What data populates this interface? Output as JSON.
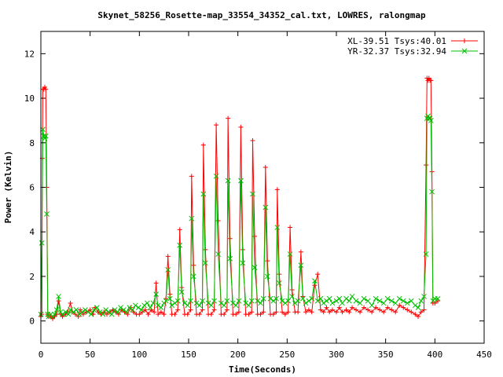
{
  "chart_data": {
    "type": "line",
    "title": "Skynet_58256_Rosette-map_33554_34352_cal.txt, LOWRES, ralongmap",
    "xlabel": "Time(Seconds)",
    "ylabel": "Power (Kelvin)",
    "xlim": [
      0,
      450
    ],
    "ylim": [
      -1,
      13
    ],
    "xticks": [
      0,
      50,
      100,
      150,
      200,
      250,
      300,
      350,
      400,
      450
    ],
    "yticks": [
      0,
      2,
      4,
      6,
      8,
      10,
      12
    ],
    "grid": false,
    "legend_position": "top-right",
    "series": [
      {
        "name": "XL-39.51 Tsys:40.01",
        "color": "#ff0000",
        "marker": "plus",
        "points": [
          [
            0,
            0.2
          ],
          [
            1,
            0.3
          ],
          [
            1.5,
            7.3
          ],
          [
            2,
            10.4
          ],
          [
            3,
            10.4
          ],
          [
            4,
            10.5
          ],
          [
            5,
            10.4
          ],
          [
            6,
            6.0
          ],
          [
            7,
            0.3
          ],
          [
            8,
            0.2
          ],
          [
            10,
            0.2
          ],
          [
            12,
            0.1
          ],
          [
            14,
            0.2
          ],
          [
            16,
            0.3
          ],
          [
            18,
            0.9
          ],
          [
            20,
            0.3
          ],
          [
            22,
            0.2
          ],
          [
            25,
            0.3
          ],
          [
            27,
            0.4
          ],
          [
            30,
            0.8
          ],
          [
            32,
            0.4
          ],
          [
            35,
            0.3
          ],
          [
            38,
            0.2
          ],
          [
            40,
            0.5
          ],
          [
            43,
            0.3
          ],
          [
            46,
            0.4
          ],
          [
            50,
            0.5
          ],
          [
            53,
            0.3
          ],
          [
            55,
            0.6
          ],
          [
            58,
            0.4
          ],
          [
            61,
            0.3
          ],
          [
            64,
            0.4
          ],
          [
            67,
            0.3
          ],
          [
            70,
            0.4
          ],
          [
            73,
            0.5
          ],
          [
            76,
            0.4
          ],
          [
            79,
            0.3
          ],
          [
            82,
            0.5
          ],
          [
            85,
            0.4
          ],
          [
            88,
            0.3
          ],
          [
            91,
            0.6
          ],
          [
            94,
            0.4
          ],
          [
            97,
            0.3
          ],
          [
            100,
            0.3
          ],
          [
            103,
            0.4
          ],
          [
            106,
            0.5
          ],
          [
            109,
            0.3
          ],
          [
            112,
            0.5
          ],
          [
            115,
            0.4
          ],
          [
            117,
            1.7
          ],
          [
            119,
            0.3
          ],
          [
            122,
            0.4
          ],
          [
            125,
            0.3
          ],
          [
            127,
            1.0
          ],
          [
            129,
            2.9
          ],
          [
            131,
            1.2
          ],
          [
            133,
            0.3
          ],
          [
            136,
            0.3
          ],
          [
            139,
            0.5
          ],
          [
            141,
            4.1
          ],
          [
            143,
            1.5
          ],
          [
            146,
            0.3
          ],
          [
            149,
            0.3
          ],
          [
            152,
            0.5
          ],
          [
            153,
            6.5
          ],
          [
            155,
            2.5
          ],
          [
            158,
            0.3
          ],
          [
            161,
            0.3
          ],
          [
            164,
            0.5
          ],
          [
            165,
            7.9
          ],
          [
            167,
            3.2
          ],
          [
            170,
            0.3
          ],
          [
            173,
            0.3
          ],
          [
            176,
            0.5
          ],
          [
            178,
            8.8
          ],
          [
            180,
            4.5
          ],
          [
            183,
            0.3
          ],
          [
            186,
            0.3
          ],
          [
            189,
            0.5
          ],
          [
            190,
            9.1
          ],
          [
            192,
            3.7
          ],
          [
            195,
            0.3
          ],
          [
            198,
            0.3
          ],
          [
            201,
            0.4
          ],
          [
            203,
            8.7
          ],
          [
            205,
            3.2
          ],
          [
            208,
            0.3
          ],
          [
            211,
            0.3
          ],
          [
            214,
            0.4
          ],
          [
            215,
            8.1
          ],
          [
            217,
            3.8
          ],
          [
            220,
            0.3
          ],
          [
            223,
            0.3
          ],
          [
            226,
            0.4
          ],
          [
            228,
            6.9
          ],
          [
            230,
            2.7
          ],
          [
            233,
            0.3
          ],
          [
            236,
            0.3
          ],
          [
            239,
            0.4
          ],
          [
            240,
            5.9
          ],
          [
            242,
            2.1
          ],
          [
            245,
            0.4
          ],
          [
            248,
            0.3
          ],
          [
            251,
            0.4
          ],
          [
            253,
            4.2
          ],
          [
            255,
            1.4
          ],
          [
            258,
            0.4
          ],
          [
            261,
            0.4
          ],
          [
            264,
            3.1
          ],
          [
            266,
            1.1
          ],
          [
            269,
            0.4
          ],
          [
            272,
            0.5
          ],
          [
            275,
            0.4
          ],
          [
            278,
            1.6
          ],
          [
            281,
            2.1
          ],
          [
            284,
            0.5
          ],
          [
            287,
            0.4
          ],
          [
            290,
            0.6
          ],
          [
            293,
            0.4
          ],
          [
            296,
            0.5
          ],
          [
            300,
            0.4
          ],
          [
            303,
            0.6
          ],
          [
            306,
            0.4
          ],
          [
            310,
            0.5
          ],
          [
            313,
            0.4
          ],
          [
            316,
            0.6
          ],
          [
            320,
            0.5
          ],
          [
            324,
            0.4
          ],
          [
            328,
            0.6
          ],
          [
            332,
            0.5
          ],
          [
            336,
            0.4
          ],
          [
            340,
            0.6
          ],
          [
            344,
            0.5
          ],
          [
            348,
            0.4
          ],
          [
            352,
            0.6
          ],
          [
            356,
            0.5
          ],
          [
            360,
            0.4
          ],
          [
            364,
            0.7
          ],
          [
            368,
            0.6
          ],
          [
            372,
            0.5
          ],
          [
            376,
            0.4
          ],
          [
            380,
            0.3
          ],
          [
            383,
            0.2
          ],
          [
            386,
            0.4
          ],
          [
            389,
            0.5
          ],
          [
            391,
            7.0
          ],
          [
            392,
            10.9
          ],
          [
            393,
            10.8
          ],
          [
            394,
            10.9
          ],
          [
            395,
            10.8
          ],
          [
            396,
            10.8
          ],
          [
            397,
            6.7
          ],
          [
            398,
            0.8
          ],
          [
            400,
            0.8
          ],
          [
            403,
            0.9
          ]
        ]
      },
      {
        "name": "YR-32.37 Tsys:32.94",
        "color": "#00c000",
        "marker": "cross",
        "points": [
          [
            0,
            0.3
          ],
          [
            1,
            3.5
          ],
          [
            2,
            8.6
          ],
          [
            3,
            8.3
          ],
          [
            4,
            8.2
          ],
          [
            5,
            8.3
          ],
          [
            6,
            4.8
          ],
          [
            7,
            0.3
          ],
          [
            8,
            0.2
          ],
          [
            10,
            0.3
          ],
          [
            12,
            0.2
          ],
          [
            14,
            0.3
          ],
          [
            16,
            0.5
          ],
          [
            18,
            1.1
          ],
          [
            20,
            0.4
          ],
          [
            22,
            0.3
          ],
          [
            25,
            0.4
          ],
          [
            28,
            0.3
          ],
          [
            30,
            0.5
          ],
          [
            33,
            0.4
          ],
          [
            36,
            0.5
          ],
          [
            39,
            0.3
          ],
          [
            42,
            0.4
          ],
          [
            45,
            0.5
          ],
          [
            48,
            0.4
          ],
          [
            51,
            0.3
          ],
          [
            54,
            0.5
          ],
          [
            57,
            0.6
          ],
          [
            60,
            0.4
          ],
          [
            63,
            0.3
          ],
          [
            66,
            0.5
          ],
          [
            69,
            0.4
          ],
          [
            72,
            0.3
          ],
          [
            75,
            0.5
          ],
          [
            78,
            0.4
          ],
          [
            81,
            0.6
          ],
          [
            84,
            0.5
          ],
          [
            87,
            0.4
          ],
          [
            90,
            0.6
          ],
          [
            93,
            0.5
          ],
          [
            96,
            0.7
          ],
          [
            99,
            0.6
          ],
          [
            102,
            0.5
          ],
          [
            105,
            0.7
          ],
          [
            108,
            0.8
          ],
          [
            111,
            0.6
          ],
          [
            114,
            0.8
          ],
          [
            117,
            1.2
          ],
          [
            119,
            0.7
          ],
          [
            122,
            0.6
          ],
          [
            125,
            0.8
          ],
          [
            127,
            0.9
          ],
          [
            129,
            2.3
          ],
          [
            131,
            1.0
          ],
          [
            133,
            0.7
          ],
          [
            136,
            0.8
          ],
          [
            139,
            0.9
          ],
          [
            141,
            3.4
          ],
          [
            143,
            1.3
          ],
          [
            146,
            0.8
          ],
          [
            149,
            0.7
          ],
          [
            152,
            0.9
          ],
          [
            153,
            4.6
          ],
          [
            155,
            2.0
          ],
          [
            158,
            0.8
          ],
          [
            161,
            0.7
          ],
          [
            164,
            0.9
          ],
          [
            165,
            5.7
          ],
          [
            167,
            2.6
          ],
          [
            170,
            0.8
          ],
          [
            173,
            0.7
          ],
          [
            176,
            0.9
          ],
          [
            178,
            6.5
          ],
          [
            180,
            3.0
          ],
          [
            183,
            0.8
          ],
          [
            186,
            0.7
          ],
          [
            189,
            0.9
          ],
          [
            190,
            6.3
          ],
          [
            192,
            2.8
          ],
          [
            195,
            0.8
          ],
          [
            198,
            0.7
          ],
          [
            201,
            0.9
          ],
          [
            203,
            6.3
          ],
          [
            205,
            2.6
          ],
          [
            208,
            0.8
          ],
          [
            211,
            0.7
          ],
          [
            214,
            0.9
          ],
          [
            215,
            5.7
          ],
          [
            217,
            2.4
          ],
          [
            220,
            0.9
          ],
          [
            223,
            0.8
          ],
          [
            226,
            1.0
          ],
          [
            228,
            5.1
          ],
          [
            230,
            2.0
          ],
          [
            233,
            1.0
          ],
          [
            236,
            0.9
          ],
          [
            239,
            1.0
          ],
          [
            240,
            4.2
          ],
          [
            242,
            1.7
          ],
          [
            245,
            0.9
          ],
          [
            248,
            0.8
          ],
          [
            251,
            0.9
          ],
          [
            253,
            3.0
          ],
          [
            255,
            1.1
          ],
          [
            258,
            0.8
          ],
          [
            261,
            0.9
          ],
          [
            264,
            2.5
          ],
          [
            266,
            1.0
          ],
          [
            269,
            0.8
          ],
          [
            272,
            0.9
          ],
          [
            275,
            1.0
          ],
          [
            278,
            1.8
          ],
          [
            281,
            0.9
          ],
          [
            284,
            1.0
          ],
          [
            287,
            0.8
          ],
          [
            290,
            0.9
          ],
          [
            293,
            1.0
          ],
          [
            296,
            0.8
          ],
          [
            300,
            0.9
          ],
          [
            303,
            1.0
          ],
          [
            306,
            0.8
          ],
          [
            310,
            1.0
          ],
          [
            313,
            0.9
          ],
          [
            316,
            1.1
          ],
          [
            320,
            0.9
          ],
          [
            324,
            0.8
          ],
          [
            328,
            1.0
          ],
          [
            332,
            0.9
          ],
          [
            336,
            0.7
          ],
          [
            340,
            1.0
          ],
          [
            344,
            0.9
          ],
          [
            348,
            0.8
          ],
          [
            352,
            1.0
          ],
          [
            356,
            0.9
          ],
          [
            360,
            0.8
          ],
          [
            364,
            1.0
          ],
          [
            368,
            0.9
          ],
          [
            372,
            0.8
          ],
          [
            376,
            0.9
          ],
          [
            380,
            0.7
          ],
          [
            383,
            0.6
          ],
          [
            386,
            0.9
          ],
          [
            389,
            1.1
          ],
          [
            391,
            3.0
          ],
          [
            392,
            9.1
          ],
          [
            393,
            9.2
          ],
          [
            394,
            9.1
          ],
          [
            395,
            9.1
          ],
          [
            396,
            9.0
          ],
          [
            397,
            5.8
          ],
          [
            398,
            0.9
          ],
          [
            400,
            1.0
          ],
          [
            403,
            1.0
          ]
        ]
      }
    ]
  }
}
